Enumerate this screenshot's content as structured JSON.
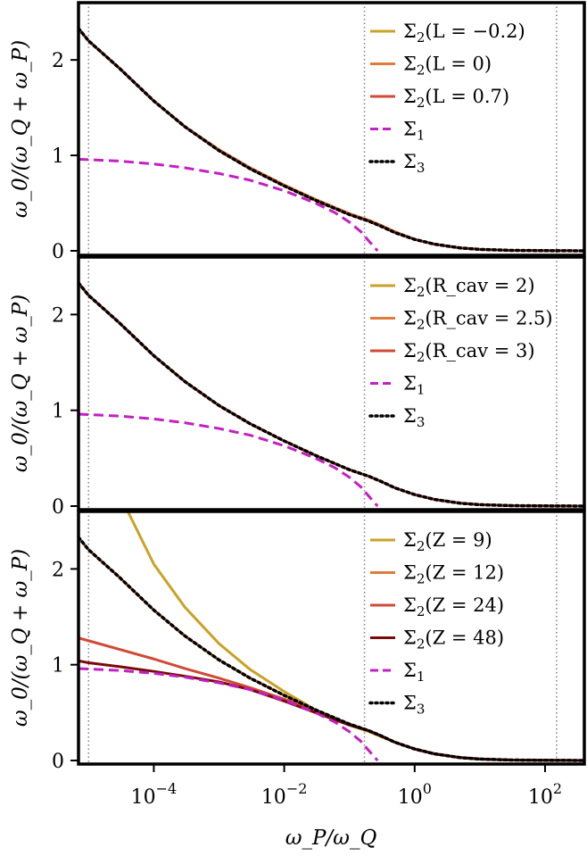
{
  "chart_data": {
    "type": "line",
    "x_scale": "log",
    "xlabel": "ω_P/ω_Q",
    "xlim": [
      7e-06,
      400
    ],
    "x_tick_labels": [
      {
        "base": "10",
        "exp": "−4",
        "value": 0.0001
      },
      {
        "base": "10",
        "exp": "−2",
        "value": 0.01
      },
      {
        "base": "10",
        "exp": "0",
        "value": 1
      },
      {
        "base": "10",
        "exp": "2",
        "value": 100
      }
    ],
    "vlines": [
      1e-05,
      0.17,
      150
    ],
    "panels": [
      {
        "ylabel": "ω_0/(ω_Q + ω_P)",
        "ylim": [
          0,
          2.6
        ],
        "y_ticks": [
          0,
          1,
          2
        ],
        "y_tick_labels": [
          "0",
          "1",
          "2"
        ],
        "series": [
          {
            "name": "Σ2(L = −0.2)",
            "label": {
              "sym": "Σ",
              "sub": "2",
              "args": "(L = −0.2)"
            },
            "color": "#c9a227",
            "style": "solid",
            "x": [
              7e-06,
              1e-05,
              3e-05,
              0.0001,
              0.0003,
              0.001,
              0.003,
              0.01,
              0.03,
              0.1,
              0.2,
              0.3,
              0.5,
              1,
              2,
              5,
              10,
              30,
              100,
              400
            ],
            "y": [
              2.33,
              2.2,
              1.91,
              1.57,
              1.3,
              1.05,
              0.86,
              0.68,
              0.53,
              0.38,
              0.31,
              0.26,
              0.2,
              0.12,
              0.07,
              0.03,
              0.015,
              0.005,
              0.002,
              0.0
            ]
          },
          {
            "name": "Σ2(L = 0)",
            "label": {
              "sym": "Σ",
              "sub": "2",
              "args": "(L = 0)"
            },
            "color": "#e07b39",
            "style": "solid",
            "x": [
              7e-06,
              1e-05,
              3e-05,
              0.0001,
              0.0003,
              0.001,
              0.003,
              0.01,
              0.03,
              0.1,
              0.2,
              0.3,
              0.5,
              1,
              2,
              5,
              10,
              30,
              100,
              400
            ],
            "y": [
              2.33,
              2.2,
              1.91,
              1.57,
              1.3,
              1.06,
              0.87,
              0.69,
              0.54,
              0.39,
              0.32,
              0.27,
              0.2,
              0.12,
              0.07,
              0.03,
              0.015,
              0.005,
              0.002,
              0.0
            ]
          },
          {
            "name": "Σ2(L = 0.7)",
            "label": {
              "sym": "Σ",
              "sub": "2",
              "args": "(L = 0.7)"
            },
            "color": "#d04a35",
            "style": "solid",
            "x": [
              7e-06,
              1e-05,
              3e-05,
              0.0001,
              0.0003,
              0.001,
              0.003,
              0.01,
              0.03,
              0.1,
              0.2,
              0.3,
              0.5,
              1,
              2,
              5,
              10,
              30,
              100,
              400
            ],
            "y": [
              2.33,
              2.2,
              1.91,
              1.57,
              1.3,
              1.05,
              0.86,
              0.68,
              0.53,
              0.38,
              0.31,
              0.26,
              0.19,
              0.12,
              0.07,
              0.03,
              0.015,
              0.005,
              0.002,
              0.0
            ]
          },
          {
            "name": "Σ1",
            "label": {
              "sym": "Σ",
              "sub": "1",
              "args": ""
            },
            "color": "#c41fc4",
            "style": "dashed",
            "x": [
              7e-06,
              1e-05,
              3e-05,
              0.0001,
              0.0003,
              0.001,
              0.003,
              0.01,
              0.03,
              0.06,
              0.1,
              0.15,
              0.2,
              0.27
            ],
            "y": [
              0.96,
              0.955,
              0.94,
              0.91,
              0.87,
              0.81,
              0.74,
              0.63,
              0.5,
              0.4,
              0.3,
              0.2,
              0.1,
              0.0
            ]
          },
          {
            "name": "Σ3",
            "label": {
              "sym": "Σ",
              "sub": "3",
              "args": ""
            },
            "color": "#000000",
            "style": "dotted",
            "x": [
              7e-06,
              1e-05,
              3e-05,
              0.0001,
              0.0003,
              0.001,
              0.003,
              0.01,
              0.03,
              0.1,
              0.2,
              0.3,
              0.5,
              1,
              2,
              5,
              10,
              30,
              100,
              400
            ],
            "y": [
              2.33,
              2.2,
              1.91,
              1.57,
              1.3,
              1.05,
              0.86,
              0.68,
              0.53,
              0.38,
              0.31,
              0.26,
              0.19,
              0.12,
              0.07,
              0.03,
              0.015,
              0.005,
              0.002,
              0.0
            ]
          }
        ]
      },
      {
        "ylabel": "ω_0/(ω_Q + ω_P)",
        "ylim": [
          0,
          2.6
        ],
        "y_ticks": [
          0,
          1,
          2
        ],
        "y_tick_labels": [
          "0",
          "1",
          "2"
        ],
        "series": [
          {
            "name": "Σ2(R_cav = 2)",
            "label": {
              "sym": "Σ",
              "sub": "2",
              "args": "(R_cav = 2)"
            },
            "color": "#c9a227",
            "style": "solid",
            "x": [
              7e-06,
              1e-05,
              3e-05,
              0.0001,
              0.0003,
              0.001,
              0.003,
              0.01,
              0.03,
              0.1,
              0.2,
              0.3,
              0.5,
              1,
              2,
              5,
              10,
              30,
              100,
              400
            ],
            "y": [
              2.33,
              2.2,
              1.91,
              1.57,
              1.3,
              1.05,
              0.86,
              0.68,
              0.53,
              0.38,
              0.31,
              0.26,
              0.19,
              0.12,
              0.07,
              0.03,
              0.015,
              0.005,
              0.002,
              0.0
            ]
          },
          {
            "name": "Σ2(R_cav = 2.5)",
            "label": {
              "sym": "Σ",
              "sub": "2",
              "args": "(R_cav = 2.5)"
            },
            "color": "#e07b39",
            "style": "solid",
            "x": [
              7e-06,
              1e-05,
              3e-05,
              0.0001,
              0.0003,
              0.001,
              0.003,
              0.01,
              0.03,
              0.1,
              0.2,
              0.3,
              0.5,
              1,
              2,
              5,
              10,
              30,
              100,
              400
            ],
            "y": [
              2.33,
              2.2,
              1.91,
              1.57,
              1.3,
              1.05,
              0.86,
              0.68,
              0.53,
              0.38,
              0.31,
              0.26,
              0.19,
              0.12,
              0.07,
              0.03,
              0.015,
              0.005,
              0.002,
              0.0
            ]
          },
          {
            "name": "Σ2(R_cav = 3)",
            "label": {
              "sym": "Σ",
              "sub": "2",
              "args": "(R_cav = 3)"
            },
            "color": "#d04a35",
            "style": "solid",
            "x": [
              7e-06,
              1e-05,
              3e-05,
              0.0001,
              0.0003,
              0.001,
              0.003,
              0.01,
              0.03,
              0.1,
              0.2,
              0.3,
              0.5,
              1,
              2,
              5,
              10,
              30,
              100,
              400
            ],
            "y": [
              2.33,
              2.2,
              1.91,
              1.57,
              1.3,
              1.05,
              0.86,
              0.68,
              0.53,
              0.38,
              0.31,
              0.26,
              0.19,
              0.12,
              0.07,
              0.03,
              0.015,
              0.005,
              0.002,
              0.0
            ]
          },
          {
            "name": "Σ1",
            "label": {
              "sym": "Σ",
              "sub": "1",
              "args": ""
            },
            "color": "#c41fc4",
            "style": "dashed",
            "x": [
              7e-06,
              1e-05,
              3e-05,
              0.0001,
              0.0003,
              0.001,
              0.003,
              0.01,
              0.03,
              0.06,
              0.1,
              0.15,
              0.2,
              0.27
            ],
            "y": [
              0.96,
              0.955,
              0.94,
              0.91,
              0.87,
              0.81,
              0.74,
              0.63,
              0.5,
              0.4,
              0.3,
              0.2,
              0.1,
              0.0
            ]
          },
          {
            "name": "Σ3",
            "label": {
              "sym": "Σ",
              "sub": "3",
              "args": ""
            },
            "color": "#000000",
            "style": "dotted",
            "x": [
              7e-06,
              1e-05,
              3e-05,
              0.0001,
              0.0003,
              0.001,
              0.003,
              0.01,
              0.03,
              0.1,
              0.2,
              0.3,
              0.5,
              1,
              2,
              5,
              10,
              30,
              100,
              400
            ],
            "y": [
              2.33,
              2.2,
              1.91,
              1.57,
              1.3,
              1.05,
              0.86,
              0.68,
              0.53,
              0.38,
              0.31,
              0.26,
              0.19,
              0.12,
              0.07,
              0.03,
              0.015,
              0.005,
              0.002,
              0.0
            ]
          }
        ]
      },
      {
        "ylabel": "ω_0/(ω_Q + ω_P)",
        "ylim": [
          0,
          2.6
        ],
        "y_ticks": [
          0,
          1,
          2
        ],
        "y_tick_labels": [
          "0",
          "1",
          "2"
        ],
        "series": [
          {
            "name": "Σ2(Z = 9)",
            "label": {
              "sym": "Σ",
              "sub": "2",
              "args": "(Z = 9)"
            },
            "color": "#c9a227",
            "style": "solid",
            "x": [
              4e-05,
              0.0001,
              0.0003,
              0.001,
              0.003,
              0.01,
              0.03,
              0.1,
              0.2,
              0.3,
              0.5,
              1,
              2,
              5,
              10,
              30,
              100,
              400
            ],
            "y": [
              2.6,
              2.05,
              1.6,
              1.22,
              0.95,
              0.72,
              0.53,
              0.37,
              0.3,
              0.25,
              0.19,
              0.12,
              0.07,
              0.03,
              0.015,
              0.005,
              0.002,
              0.0
            ]
          },
          {
            "name": "Σ2(Z = 12)",
            "label": {
              "sym": "Σ",
              "sub": "2",
              "args": "(Z = 12)"
            },
            "color": "#e07b39",
            "style": "solid",
            "x": [
              7e-06,
              1e-05,
              3e-05,
              0.0001,
              0.0003,
              0.001,
              0.003,
              0.01,
              0.03,
              0.1,
              0.2,
              0.3,
              0.5,
              1,
              2,
              5,
              10,
              30,
              100,
              400
            ],
            "y": [
              2.33,
              2.2,
              1.91,
              1.57,
              1.3,
              1.05,
              0.86,
              0.68,
              0.53,
              0.38,
              0.31,
              0.26,
              0.19,
              0.12,
              0.07,
              0.03,
              0.015,
              0.005,
              0.002,
              0.0
            ]
          },
          {
            "name": "Σ2(Z = 24)",
            "label": {
              "sym": "Σ",
              "sub": "2",
              "args": "(Z = 24)"
            },
            "color": "#d04a35",
            "style": "solid",
            "x": [
              7e-06,
              1e-05,
              3e-05,
              0.0001,
              0.0003,
              0.001,
              0.003,
              0.01,
              0.03,
              0.1,
              0.2,
              0.3,
              0.5,
              1,
              2,
              5,
              10,
              30,
              100,
              400
            ],
            "y": [
              1.28,
              1.25,
              1.16,
              1.06,
              0.96,
              0.86,
              0.76,
              0.64,
              0.52,
              0.38,
              0.31,
              0.26,
              0.19,
              0.12,
              0.07,
              0.03,
              0.015,
              0.005,
              0.002,
              0.0
            ]
          },
          {
            "name": "Σ2(Z = 48)",
            "label": {
              "sym": "Σ",
              "sub": "2",
              "args": "(Z = 48)"
            },
            "color": "#7a0a0a",
            "style": "solid",
            "x": [
              7e-06,
              1e-05,
              3e-05,
              0.0001,
              0.0003,
              0.001,
              0.003,
              0.01,
              0.03,
              0.1,
              0.2,
              0.3,
              0.5,
              1,
              2,
              5,
              10,
              30,
              100,
              400
            ],
            "y": [
              1.04,
              1.02,
              0.98,
              0.93,
              0.88,
              0.82,
              0.74,
              0.62,
              0.5,
              0.37,
              0.31,
              0.26,
              0.19,
              0.12,
              0.07,
              0.03,
              0.015,
              0.005,
              0.002,
              0.0
            ]
          },
          {
            "name": "Σ1",
            "label": {
              "sym": "Σ",
              "sub": "1",
              "args": ""
            },
            "color": "#c41fc4",
            "style": "dashed",
            "x": [
              7e-06,
              1e-05,
              3e-05,
              0.0001,
              0.0003,
              0.001,
              0.003,
              0.01,
              0.03,
              0.06,
              0.1,
              0.15,
              0.2,
              0.27
            ],
            "y": [
              0.96,
              0.955,
              0.94,
              0.91,
              0.87,
              0.81,
              0.74,
              0.63,
              0.5,
              0.4,
              0.3,
              0.2,
              0.1,
              0.0
            ]
          },
          {
            "name": "Σ3",
            "label": {
              "sym": "Σ",
              "sub": "3",
              "args": ""
            },
            "color": "#000000",
            "style": "dotted",
            "x": [
              7e-06,
              1e-05,
              3e-05,
              0.0001,
              0.0003,
              0.001,
              0.003,
              0.01,
              0.03,
              0.1,
              0.2,
              0.3,
              0.5,
              1,
              2,
              5,
              10,
              30,
              100,
              400
            ],
            "y": [
              2.33,
              2.2,
              1.91,
              1.57,
              1.3,
              1.05,
              0.86,
              0.68,
              0.53,
              0.38,
              0.31,
              0.26,
              0.19,
              0.12,
              0.07,
              0.03,
              0.015,
              0.005,
              0.002,
              0.0
            ]
          }
        ]
      }
    ]
  }
}
